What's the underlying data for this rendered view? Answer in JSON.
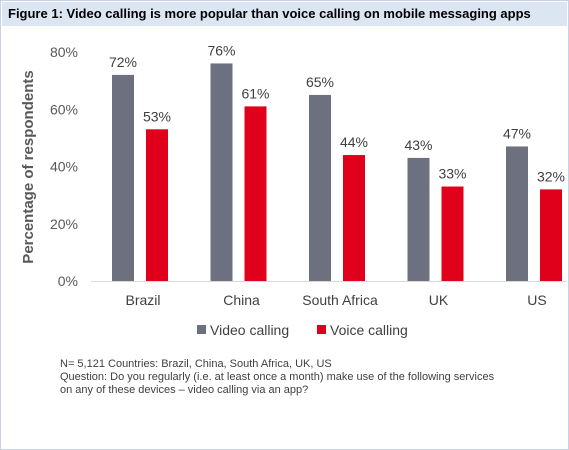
{
  "title": "Figure 1: Video calling is more popular than voice calling on mobile messaging apps",
  "chart_data": {
    "type": "bar",
    "categories": [
      "Brazil",
      "China",
      "South Africa",
      "UK",
      "US"
    ],
    "series": [
      {
        "name": "Video calling",
        "values": [
          72,
          76,
          65,
          43,
          47
        ],
        "color": "#6d717f"
      },
      {
        "name": "Voice calling",
        "values": [
          53,
          61,
          44,
          33,
          32
        ],
        "color": "#e0001b"
      }
    ],
    "data_labels": [
      [
        "72%",
        "76%",
        "65%",
        "43%",
        "47%"
      ],
      [
        "53%",
        "61%",
        "44%",
        "33%",
        "32%"
      ]
    ],
    "ylabel": "Percentage of respondents",
    "ylim": [
      0,
      80
    ],
    "yticks": [
      0,
      20,
      40,
      60,
      80
    ],
    "ytick_labels": [
      "0%",
      "20%",
      "40%",
      "60%",
      "80%"
    ],
    "grid": false,
    "legend_position": "bottom"
  },
  "notes": {
    "line1": "N= 5,121 Countries: Brazil, China, South Africa, UK, US",
    "line2": "Question: Do you regularly (i.e. at least once a month) make use of the following services",
    "line3": "on any of these devices – video calling via an app?"
  }
}
